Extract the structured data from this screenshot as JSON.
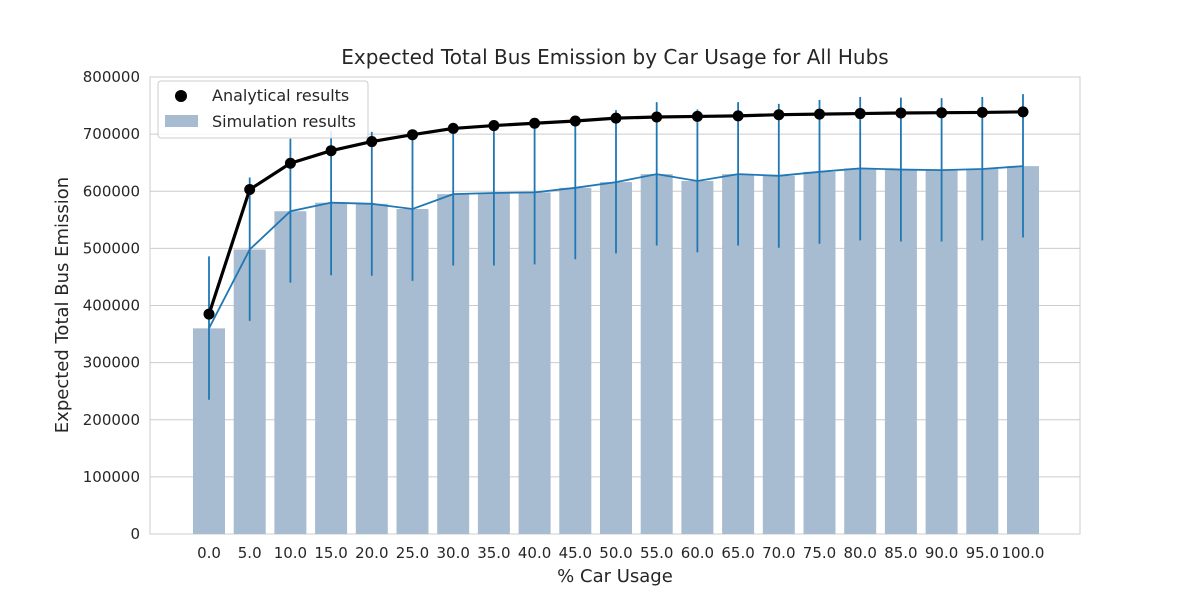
{
  "chart_data": {
    "type": "bar",
    "title": "Expected Total Bus Emission by Car Usage for All Hubs",
    "xlabel": "% Car Usage",
    "ylabel": "Expected Total Bus Emission",
    "categories": [
      "0.0",
      "5.0",
      "10.0",
      "15.0",
      "20.0",
      "25.0",
      "30.0",
      "35.0",
      "40.0",
      "45.0",
      "50.0",
      "55.0",
      "60.0",
      "65.0",
      "70.0",
      "75.0",
      "80.0",
      "85.0",
      "90.0",
      "95.0",
      "100.0"
    ],
    "ylim": [
      0,
      800000
    ],
    "yticks": [
      0,
      100000,
      200000,
      300000,
      400000,
      500000,
      600000,
      700000,
      800000
    ],
    "ytick_labels": [
      "0",
      "100000",
      "200000",
      "300000",
      "400000",
      "500000",
      "600000",
      "700000",
      "800000"
    ],
    "grid": true,
    "legend_position": "top-left",
    "series": [
      {
        "name": "Analytical results",
        "kind": "line-markers",
        "color": "#000000",
        "values": [
          385000,
          603000,
          649000,
          671000,
          687000,
          699000,
          710000,
          715000,
          719000,
          723000,
          728000,
          730000,
          731000,
          732000,
          734000,
          735000,
          736000,
          737000,
          737500,
          738000,
          739000
        ]
      },
      {
        "name": "Simulation results",
        "kind": "bar-with-line-and-error",
        "bar_color": "#a7bcd0",
        "line_color": "#1f77b4",
        "values": [
          360000,
          498000,
          565000,
          580000,
          578000,
          569000,
          595000,
          597000,
          598000,
          606000,
          616000,
          630000,
          618000,
          630000,
          627000,
          634000,
          640000,
          638000,
          637000,
          639000,
          644000
        ],
        "error_low": [
          235000,
          373000,
          440000,
          453000,
          452000,
          443000,
          470000,
          470000,
          472000,
          481000,
          491000,
          505000,
          493000,
          505000,
          501000,
          508000,
          514000,
          512000,
          512000,
          514000,
          519000
        ],
        "error_high": [
          486000,
          624000,
          692000,
          706000,
          704000,
          695000,
          720000,
          722000,
          724000,
          731000,
          742000,
          756000,
          743000,
          756000,
          753000,
          760000,
          765000,
          764000,
          763000,
          765000,
          770000
        ]
      }
    ]
  }
}
